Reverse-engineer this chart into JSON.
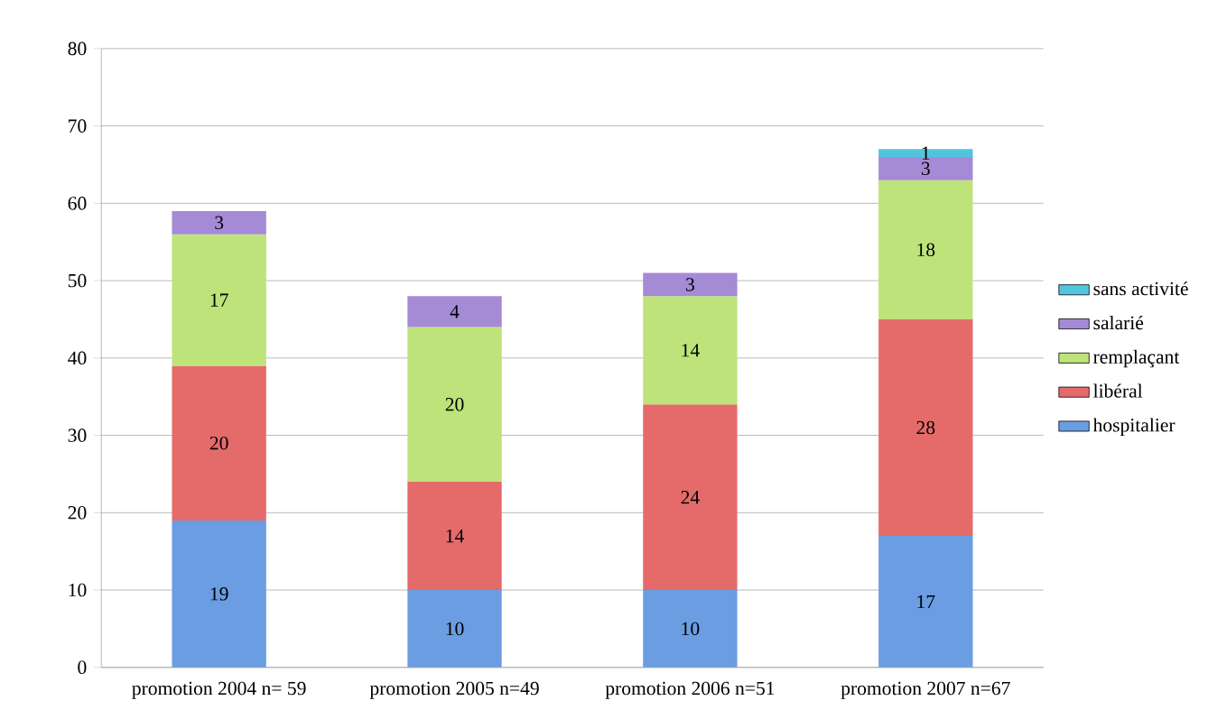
{
  "chart_data": {
    "type": "bar",
    "stacked": true,
    "categories": [
      "promotion 2004 n= 59",
      "promotion 2005 n=49",
      "promotion 2006 n=51",
      "promotion 2007 n=67"
    ],
    "series": [
      {
        "name": "hospitalier",
        "color": "#6b9de3",
        "values": [
          19,
          10,
          10,
          17
        ]
      },
      {
        "name": "libéral",
        "color": "#e56b6b",
        "values": [
          20,
          14,
          24,
          28
        ]
      },
      {
        "name": "remplaçant",
        "color": "#bde37a",
        "values": [
          17,
          20,
          14,
          18
        ]
      },
      {
        "name": "salarié",
        "color": "#a58ad6",
        "values": [
          3,
          4,
          3,
          3
        ]
      },
      {
        "name": "sans activité",
        "color": "#4fc6dd",
        "values": [
          null,
          null,
          null,
          1
        ]
      }
    ],
    "ylim": [
      0,
      80
    ],
    "yticks": [
      0,
      10,
      20,
      30,
      40,
      50,
      60,
      70,
      80
    ],
    "grid": "y",
    "legend": "right",
    "data_labels": true
  }
}
